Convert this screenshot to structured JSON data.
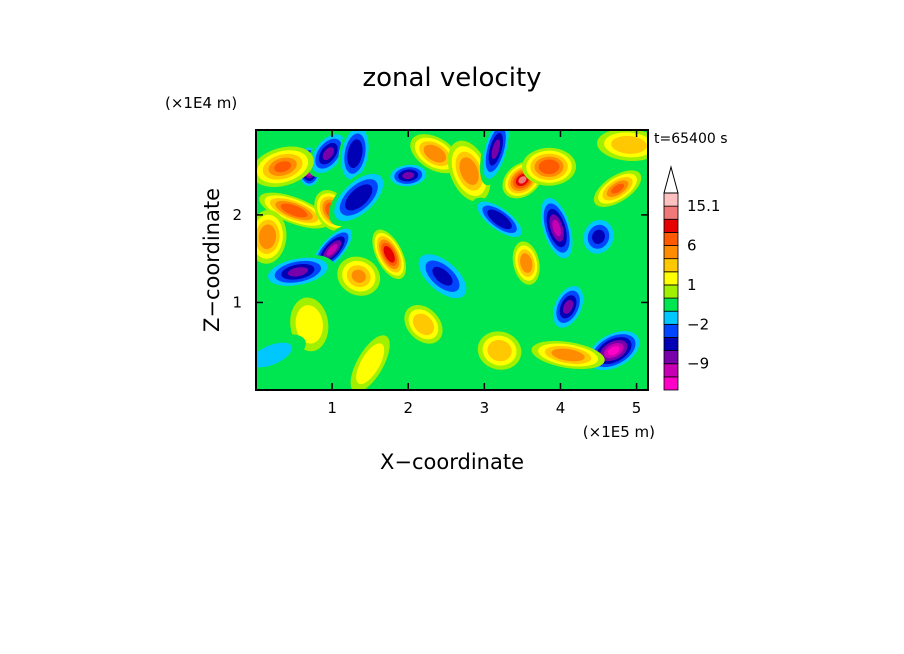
{
  "chart_data": {
    "type": "heatmap",
    "title": "zonal velocity",
    "xlabel": "X−coordinate",
    "ylabel": "Z−coordinate",
    "x_scale_label": "(×1E5 m)",
    "y_scale_label": "(×1E4 m)",
    "time_label": "t=65400 s",
    "xlim": [
      0,
      5.15
    ],
    "ylim": [
      0,
      2.97
    ],
    "x_ticks": [
      1,
      2,
      3,
      4,
      5
    ],
    "y_ticks": [
      1,
      2
    ],
    "x_tick_labels": [
      "1",
      "2",
      "3",
      "4",
      "5"
    ],
    "y_tick_labels": [
      "1",
      "2"
    ],
    "colorbar": {
      "levels": [
        -15,
        -12,
        -9,
        -6,
        -3,
        -2,
        -1,
        0,
        1,
        2,
        3,
        6,
        9,
        12,
        15.1
      ],
      "colors": [
        "#ff00c8",
        "#c800b4",
        "#7800aa",
        "#0000b4",
        "#0046ff",
        "#00c8ff",
        "#00e650",
        "#a0f000",
        "#ffff00",
        "#ffc800",
        "#ff8c00",
        "#ff5a00",
        "#e60000",
        "#f07878",
        "#ffc0c0"
      ],
      "tick_labels": [
        {
          "value": 15.1,
          "label": "15.1"
        },
        {
          "value": 6,
          "label": "6"
        },
        {
          "value": 1,
          "label": "1"
        },
        {
          "value": -2,
          "label": "−2"
        },
        {
          "value": -9,
          "label": "−9"
        }
      ],
      "extend": "max"
    },
    "features": [
      {
        "x": 0.7,
        "z": 2.55,
        "v": -14
      },
      {
        "x": 0.95,
        "z": 2.7,
        "v": -6
      },
      {
        "x": 0.35,
        "z": 2.55,
        "v": 7
      },
      {
        "x": 0.5,
        "z": 2.05,
        "v": 8
      },
      {
        "x": 1.0,
        "z": 2.05,
        "v": 9
      },
      {
        "x": 0.15,
        "z": 1.75,
        "v": 5
      },
      {
        "x": 1.0,
        "z": 1.6,
        "v": -9
      },
      {
        "x": 0.55,
        "z": 1.35,
        "v": -6
      },
      {
        "x": 1.35,
        "z": 1.3,
        "v": 4
      },
      {
        "x": 1.75,
        "z": 1.55,
        "v": 11
      },
      {
        "x": 1.3,
        "z": 2.7,
        "v": -5
      },
      {
        "x": 1.35,
        "z": 2.2,
        "v": -5
      },
      {
        "x": 2.0,
        "z": 2.45,
        "v": -6
      },
      {
        "x": 2.35,
        "z": 2.7,
        "v": 6
      },
      {
        "x": 2.8,
        "z": 2.5,
        "v": 5
      },
      {
        "x": 3.15,
        "z": 2.75,
        "v": -6
      },
      {
        "x": 3.5,
        "z": 2.4,
        "v": 13
      },
      {
        "x": 3.85,
        "z": 2.55,
        "v": 8
      },
      {
        "x": 3.2,
        "z": 1.95,
        "v": -5
      },
      {
        "x": 3.95,
        "z": 1.85,
        "v": -9
      },
      {
        "x": 4.5,
        "z": 1.75,
        "v": -4
      },
      {
        "x": 4.75,
        "z": 2.3,
        "v": 7
      },
      {
        "x": 4.9,
        "z": 2.8,
        "v": 3
      },
      {
        "x": 2.45,
        "z": 1.3,
        "v": -4
      },
      {
        "x": 3.55,
        "z": 1.45,
        "v": 6
      },
      {
        "x": 4.1,
        "z": 0.95,
        "v": -6
      },
      {
        "x": 4.7,
        "z": 0.45,
        "v": -12
      },
      {
        "x": 4.1,
        "z": 0.4,
        "v": 5
      },
      {
        "x": 2.2,
        "z": 0.75,
        "v": 3
      },
      {
        "x": 0.7,
        "z": 0.75,
        "v": 2
      },
      {
        "x": 1.5,
        "z": 0.3,
        "v": 2
      },
      {
        "x": 0.2,
        "z": 0.4,
        "v": -1
      },
      {
        "x": 3.2,
        "z": 0.45,
        "v": 3
      }
    ]
  }
}
